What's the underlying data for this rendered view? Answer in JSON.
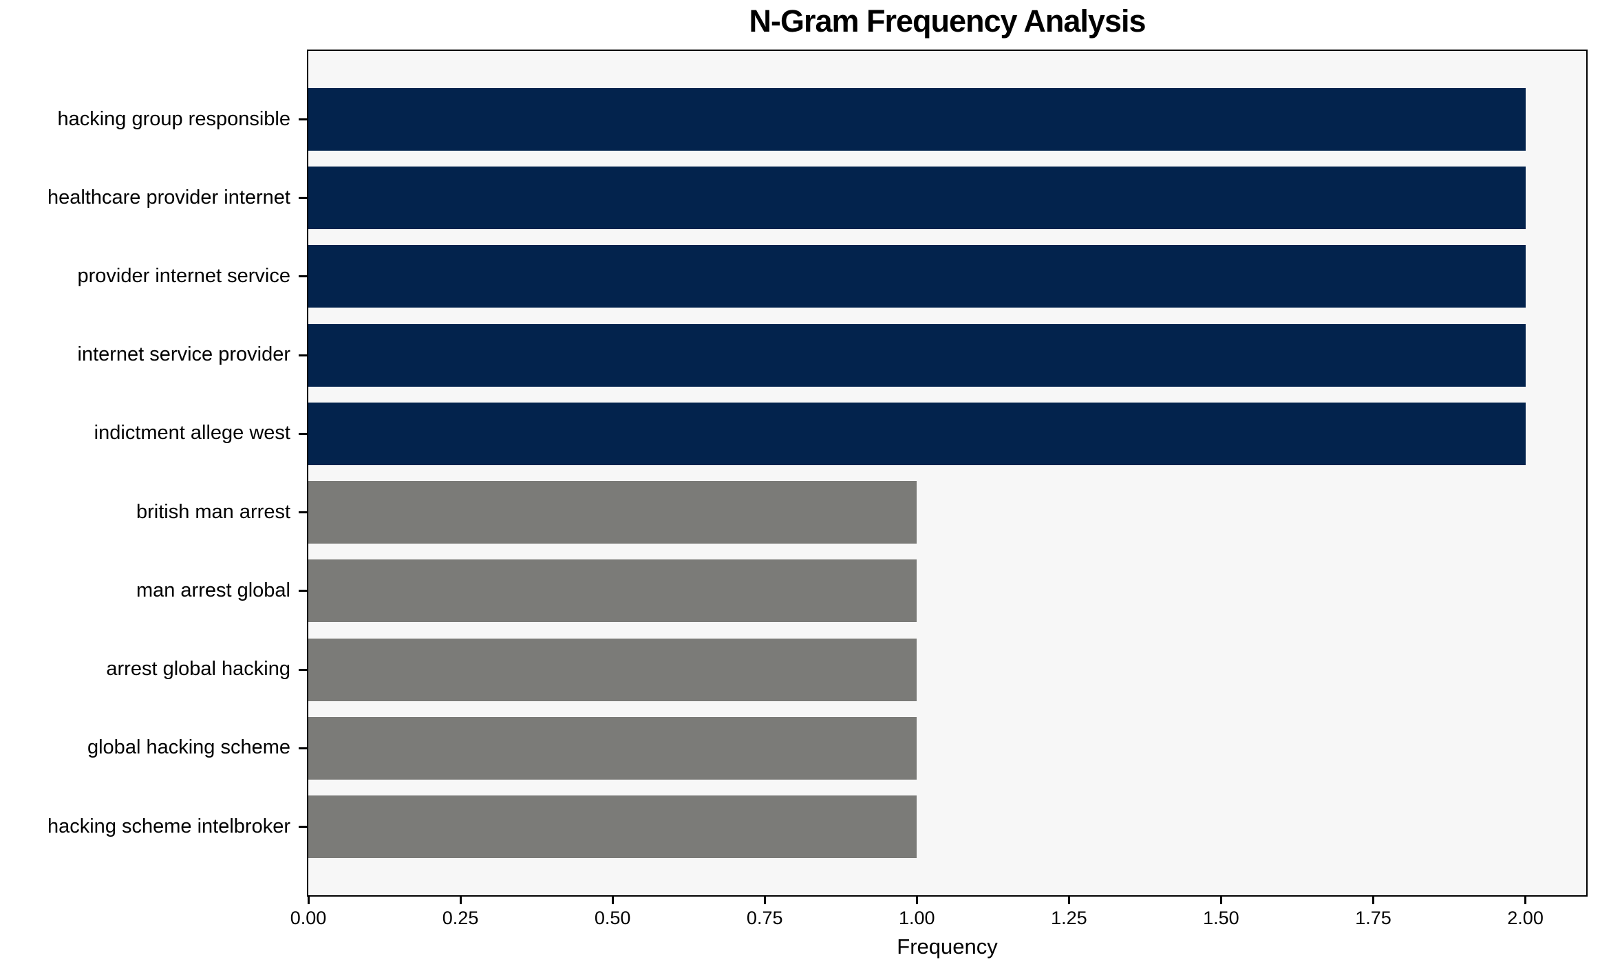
{
  "page": {
    "background": "#ffffff"
  },
  "chart_data": {
    "type": "bar",
    "orientation": "horizontal",
    "title": "N-Gram Frequency Analysis",
    "xlabel": "Frequency",
    "ylabel": "",
    "categories": [
      "hacking group responsible",
      "healthcare provider internet",
      "provider internet service",
      "internet service provider",
      "indictment allege west",
      "british man arrest",
      "man arrest global",
      "arrest global hacking",
      "global hacking scheme",
      "hacking scheme intelbroker"
    ],
    "values": [
      2,
      2,
      2,
      2,
      2,
      1,
      1,
      1,
      1,
      1
    ],
    "bar_colors": [
      "#03234d",
      "#03234d",
      "#03234d",
      "#03234d",
      "#03234d",
      "#7b7b78",
      "#7b7b78",
      "#7b7b78",
      "#7b7b78",
      "#7b7b78"
    ],
    "xlim": [
      0,
      2.1
    ],
    "xticks": [
      0,
      0.25,
      0.5,
      0.75,
      1.0,
      1.25,
      1.5,
      1.75,
      2.0
    ],
    "xtick_labels": [
      "0.00",
      "0.25",
      "0.50",
      "0.75",
      "1.00",
      "1.25",
      "1.50",
      "1.75",
      "2.00"
    ],
    "grid": false,
    "legend_position": "none",
    "plot_background": "#f7f7f7",
    "spine_color": "#000000",
    "text_color": "#000000"
  }
}
